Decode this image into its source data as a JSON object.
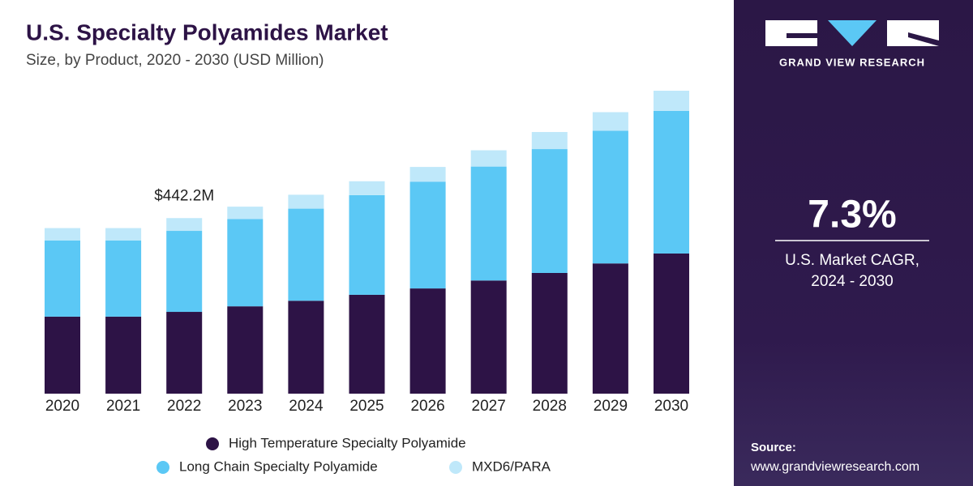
{
  "chart_data": {
    "type": "stacked-bar",
    "title": "U.S. Specialty Polyamides Market",
    "subtitle": "Size, by Product, 2020 - 2030 (USD Million)",
    "categories": [
      "2020",
      "2021",
      "2022",
      "2023",
      "2024",
      "2025",
      "2026",
      "2027",
      "2028",
      "2029",
      "2030"
    ],
    "series": [
      {
        "name": "High Temperature Specialty Polyamide",
        "color": "#2d1346",
        "values": [
          194,
          194,
          206,
          220,
          234,
          249,
          265,
          285,
          304,
          328,
          353
        ]
      },
      {
        "name": "Long Chain Specialty Polyamide",
        "color": "#5bc8f5",
        "values": [
          192,
          192,
          204,
          220,
          232,
          251,
          269,
          287,
          312,
          334,
          359
        ]
      },
      {
        "name": "MXD6/PARA",
        "color": "#bfe8fa",
        "values": [
          31,
          31,
          32.2,
          31,
          35,
          35,
          37,
          41,
          43,
          47,
          51
        ]
      }
    ],
    "annotation": {
      "category": "2022",
      "value": 442.2,
      "label": "$442.2M"
    }
  },
  "brand": "GRAND VIEW RESEARCH",
  "cagr": {
    "value": "7.3%",
    "line1": "U.S.  Market CAGR,",
    "line2": "2024 - 2030"
  },
  "source": {
    "label": "Source:",
    "url": "www.grandviewresearch.com"
  }
}
